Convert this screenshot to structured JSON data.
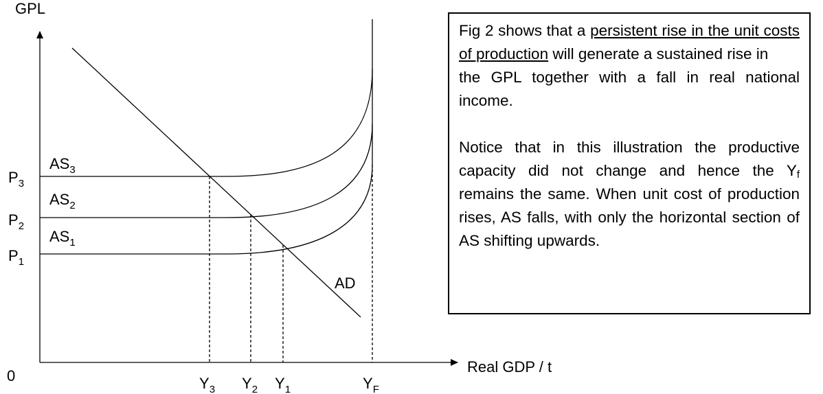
{
  "diagram": {
    "y_axis_label": "GPL",
    "x_axis_label": "Real GDP / t",
    "origin_label": "0",
    "price_levels": [
      {
        "main": "P",
        "sub": "3"
      },
      {
        "main": "P",
        "sub": "2"
      },
      {
        "main": "P",
        "sub": "1"
      }
    ],
    "supply_curves": [
      {
        "main": "AS",
        "sub": "3"
      },
      {
        "main": "AS",
        "sub": "2"
      },
      {
        "main": "AS",
        "sub": "1"
      }
    ],
    "demand_curve": "AD",
    "output_levels": [
      {
        "main": "Y",
        "sub": "3"
      },
      {
        "main": "Y",
        "sub": "2"
      },
      {
        "main": "Y",
        "sub": "1"
      },
      {
        "main": "Y",
        "sub": "F"
      }
    ]
  },
  "text_box": {
    "paragraph_1": {
      "before": "Fig 2 shows that a ",
      "underlined": "persistent rise in the unit costs of production",
      "after_line": " will generate a sustained rise in",
      "rest": "the GPL together with a fall in real national income."
    },
    "paragraph_2": {
      "before": "Notice that in this illustration the productive capacity did not change and hence the ",
      "symbol": "Y",
      "symbol_sub": "f",
      "after": " remains the same. When unit cost of production rises, AS falls, with only the horizontal section of AS shifting upwards."
    }
  }
}
